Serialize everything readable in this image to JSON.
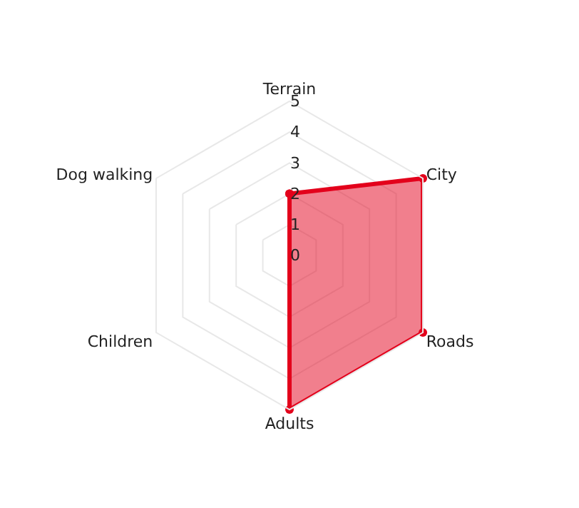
{
  "chart_data": {
    "type": "radar",
    "categories": [
      "Terrain",
      "City",
      "Roads",
      "Adults",
      "Children",
      "Dog walking"
    ],
    "series": [
      {
        "color": "#e3001b",
        "values": [
          2,
          5,
          5,
          5,
          0,
          0
        ]
      }
    ],
    "ylim": [
      0,
      5
    ],
    "yticks": [
      0,
      1,
      2,
      3,
      4,
      5
    ],
    "grid": true,
    "marker": "circle",
    "line_style": "solid"
  }
}
